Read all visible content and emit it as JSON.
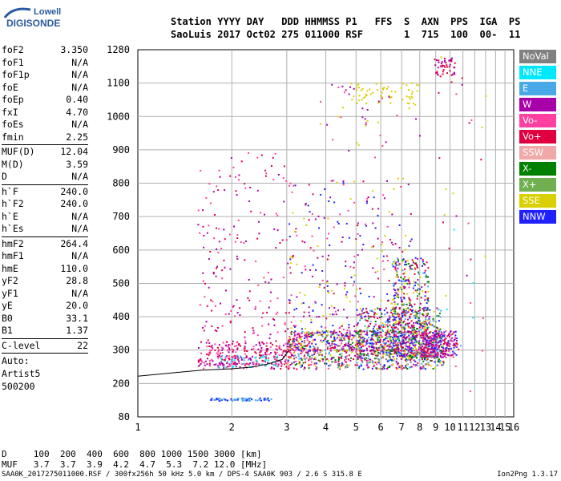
{
  "logo": {
    "line1": "Lowell",
    "line2": "DIGISONDE"
  },
  "header": {
    "labels": "Station YYYY DAY   DDD HHMMSS P1   FFS  S  AXN  PPS  IGA  PS",
    "values": "SaoLuis 2017 Oct02 275 011000 RSF       1  715  100  00-  11"
  },
  "params": [
    [
      {
        "name": "foF2",
        "value": "3.350"
      },
      {
        "name": "foF1",
        "value": "N/A"
      },
      {
        "name": "foF1p",
        "value": "N/A"
      },
      {
        "name": "foE",
        "value": "N/A"
      },
      {
        "name": "foEp",
        "value": "0.40"
      },
      {
        "name": "fxI",
        "value": "4.70"
      },
      {
        "name": "foEs",
        "value": "N/A"
      },
      {
        "name": "fmin",
        "value": "2.25"
      }
    ],
    [
      {
        "name": "MUF(D)",
        "value": "12.04"
      },
      {
        "name": "M(D)",
        "value": "3.59"
      },
      {
        "name": "D",
        "value": "N/A"
      }
    ],
    [
      {
        "name": "h`F",
        "value": "240.0"
      },
      {
        "name": "h`F2",
        "value": "240.0"
      },
      {
        "name": "h`E",
        "value": "N/A"
      },
      {
        "name": "h`Es",
        "value": "N/A"
      }
    ],
    [
      {
        "name": "hmF2",
        "value": "264.4"
      },
      {
        "name": "hmF1",
        "value": "N/A"
      },
      {
        "name": "hmE",
        "value": "110.0"
      },
      {
        "name": "yF2",
        "value": "28.8"
      },
      {
        "name": "yF1",
        "value": "N/A"
      },
      {
        "name": "yE",
        "value": "20.0"
      },
      {
        "name": "B0",
        "value": "33.1"
      },
      {
        "name": "B1",
        "value": "1.37"
      }
    ],
    [
      {
        "name": "C-level",
        "value": "22"
      }
    ]
  ],
  "auto": {
    "line1": "Auto:",
    "line2": "Artist5",
    "line3": "500200"
  },
  "legend": [
    {
      "label": "NoVal",
      "color": "#808080"
    },
    {
      "label": "NNE",
      "color": "#00e8ff"
    },
    {
      "label": "E",
      "color": "#48a8e8"
    },
    {
      "label": "W",
      "color": "#a800a8"
    },
    {
      "label": "Vo-",
      "color": "#ff40a0"
    },
    {
      "label": "Vo+",
      "color": "#e00040"
    },
    {
      "label": "SSW",
      "color": "#f0a8a8"
    },
    {
      "label": "X-",
      "color": "#008000"
    },
    {
      "label": "X+",
      "color": "#70b050"
    },
    {
      "label": "SSE",
      "color": "#d8d000"
    },
    {
      "label": "NNW",
      "color": "#2020ff"
    }
  ],
  "footer": {
    "d_row": "D     100  200  400  600  800 1000 1500 3000 [km]",
    "muf_row": "MUF   3.7  3.7  3.9  4.2  4.7  5.3  7.2 12.0 [MHz]",
    "source": "SAA0K_2017275011000.RSF / 300fx256h 50 kHz 5.0 km / DPS-4 SAA0K 903 / 2.6 S 315.8 E",
    "version": "Ion2Png 1.3.17"
  },
  "chart_data": {
    "type": "scatter",
    "x_ticks": [
      "1",
      "2",
      "3",
      "4",
      "5",
      "6",
      "7",
      "8",
      "9",
      "10",
      "11",
      "12",
      "13",
      "14",
      "15",
      "16"
    ],
    "y_ticks": [
      "80",
      "200",
      "300",
      "400",
      "500",
      "600",
      "700",
      "800",
      "900",
      "1000",
      "1100",
      "1280"
    ],
    "xlim": [
      1,
      16
    ],
    "ylim": [
      80,
      1280
    ],
    "x_scale": "log",
    "grid": true,
    "legend_position": "right",
    "trace": {
      "x": [
        1.0,
        1.3,
        1.6,
        2.0,
        2.3,
        2.6,
        2.9,
        3.05
      ],
      "y": [
        222,
        232,
        240,
        244,
        249,
        258,
        272,
        300
      ]
    },
    "clusters": [
      {
        "x": [
          1.55,
          3.2
        ],
        "y": [
          245,
          330
        ],
        "n": 220,
        "colors": [
          "#a800a8",
          "#e00040",
          "#ff40a0"
        ]
      },
      {
        "x": [
          1.8,
          2.9
        ],
        "y": [
          250,
          290
        ],
        "n": 60,
        "colors": [
          "#48a8e8",
          "#00e8ff"
        ]
      },
      {
        "x": [
          3.0,
          9.5
        ],
        "y": [
          245,
          360
        ],
        "n": 900,
        "colors": [
          "#a800a8",
          "#e00040",
          "#ff40a0",
          "#d8d000",
          "#48a8e8",
          "#2020ff",
          "#008000",
          "#808080"
        ]
      },
      {
        "x": [
          5.0,
          9.3
        ],
        "y": [
          280,
          430
        ],
        "n": 500,
        "colors": [
          "#d8d000",
          "#a800a8",
          "#e00040",
          "#2020ff",
          "#48a8e8",
          "#008000"
        ]
      },
      {
        "x": [
          6.5,
          8.5
        ],
        "y": [
          270,
          580
        ],
        "n": 380,
        "colors": [
          "#2020ff",
          "#d8d000",
          "#a800a8",
          "#48a8e8",
          "#e00040",
          "#008000"
        ]
      },
      {
        "x": [
          8.0,
          10.5
        ],
        "y": [
          280,
          360
        ],
        "n": 260,
        "colors": [
          "#a800a8",
          "#e00040",
          "#ff40a0",
          "#2020ff"
        ]
      },
      {
        "x": [
          1.55,
          3.0
        ],
        "y": [
          260,
          900
        ],
        "n": 260,
        "colors": [
          "#e00040",
          "#ff40a0",
          "#a800a8"
        ],
        "mode": "columns"
      },
      {
        "x": [
          3.0,
          7.5
        ],
        "y": [
          300,
          820
        ],
        "n": 500,
        "colors": [
          "#e00040",
          "#ff40a0",
          "#a800a8",
          "#d8d000",
          "#2020ff"
        ],
        "mode": "columns"
      },
      {
        "x": [
          1.7,
          2.7
        ],
        "y": [
          140,
          150
        ],
        "n": 70,
        "colors": [
          "#2020ff",
          "#48a8e8"
        ]
      },
      {
        "x": [
          4.8,
          7.9
        ],
        "y": [
          1040,
          1105
        ],
        "n": 60,
        "colors": [
          "#d8d000"
        ]
      },
      {
        "x": [
          8.8,
          10.4
        ],
        "y": [
          1140,
          1245
        ],
        "n": 45,
        "colors": [
          "#a800a8",
          "#e00040"
        ]
      },
      {
        "x": [
          3.8,
          8.0
        ],
        "y": [
          870,
          1100
        ],
        "n": 40,
        "colors": [
          "#d8d000",
          "#ff40a0",
          "#a800a8"
        ]
      },
      {
        "x": [
          9.0,
          13.0
        ],
        "y": [
          150,
          1260
        ],
        "n": 35,
        "colors": [
          "#d8d000",
          "#ff40a0",
          "#e00040",
          "#48a8e8",
          "#00e8ff",
          "#a800a8"
        ]
      }
    ]
  }
}
